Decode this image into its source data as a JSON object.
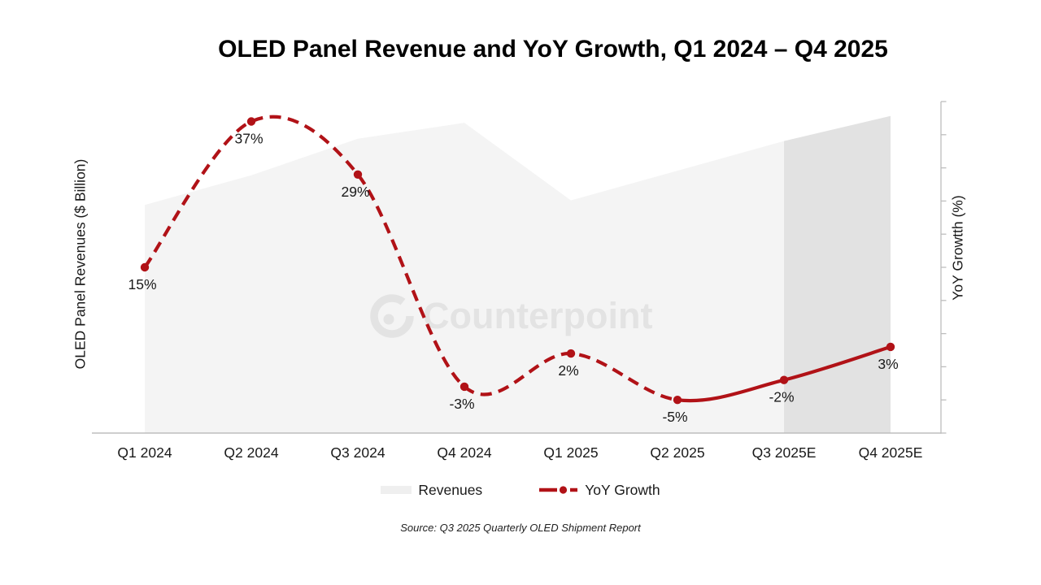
{
  "title": "OLED Panel Revenue and YoY Growth, Q1 2024 – Q4 2025",
  "watermark": {
    "text": "Counterpoint"
  },
  "source": "Source: Q3 2025 Quarterly OLED Shipment Report",
  "axes": {
    "left_label": "OLED Panel Revenues ($ Billion)",
    "right_label": "YoY Growtth (%)",
    "right_axis_range": [
      -10,
      40
    ],
    "right_tick_step": 5,
    "tick_value_labels_shown": false
  },
  "legend": [
    {
      "label": "Revenues",
      "swatch_color": "#efefef",
      "symbol": "area-swatch"
    },
    {
      "label": "YoY Growth",
      "swatch_color": "#b11217",
      "symbol": "dash-dot-line"
    }
  ],
  "colors": {
    "accent_red": "#b11217",
    "area_fill": "#f4f4f4",
    "forecast_fill": "#e2e2e2",
    "axis_line": "#bdbdbd",
    "watermark": "#e3e3e3",
    "label_text": "#1a1a1a"
  },
  "chart_data": {
    "type": "combo",
    "title": "OLED Panel Revenue and YoY Growth, Q1 2024 – Q4 2025",
    "categories": [
      "Q1 2024",
      "Q2 2024",
      "Q3 2024",
      "Q4 2024",
      "Q1 2025",
      "Q2 2025",
      "Q3 2025E",
      "Q4 2025E"
    ],
    "xlabel": "",
    "ylabel_left": "OLED Panel Revenues ($ Billion)",
    "ylabel_right": "YoY Growtth (%)",
    "right_ylim": [
      -10,
      40
    ],
    "left_ylim": [
      0,
      14.5
    ],
    "grid": false,
    "legend_position": "bottom",
    "series": [
      {
        "name": "Revenues",
        "type": "area",
        "axis": "left",
        "unit": "$ Billion",
        "values": [
          10.0,
          11.3,
          12.9,
          13.6,
          10.2,
          11.5,
          12.8,
          13.9
        ],
        "note": "left axis has no tick labels; values estimated from area heights",
        "forecast_categories": [
          "Q3 2025E",
          "Q4 2025E"
        ],
        "color": "#f4f4f4",
        "forecast_color": "#e2e2e2"
      },
      {
        "name": "YoY Growth",
        "type": "line",
        "axis": "right",
        "unit": "%",
        "values": [
          15,
          37,
          29,
          -3,
          2,
          -5,
          -2,
          3
        ],
        "point_labels": [
          "15%",
          "37%",
          "29%",
          "-3%",
          "2%",
          "-5%",
          "-2%",
          "3%"
        ],
        "color": "#b11217",
        "marker": "circle",
        "line_style": "dashed through Q2 2025, solid from Q2 2025 to Q4 2025E",
        "dashed_until_index": 5
      }
    ]
  }
}
